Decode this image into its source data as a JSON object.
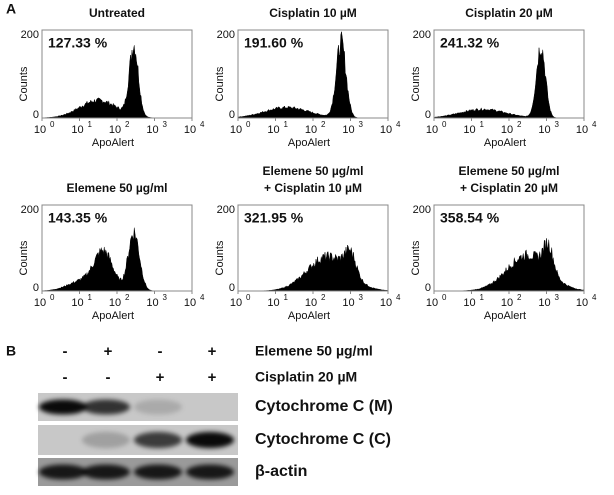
{
  "panel_a": {
    "label": "A",
    "x_label": "ApoAlert",
    "y_label": "Counts",
    "y_ticks": [
      "0",
      "200"
    ],
    "x_tick_base": "10",
    "x_tick_exponents": [
      "0",
      "1",
      "2",
      "3",
      "4"
    ],
    "plots": [
      {
        "title": [
          "Untreated"
        ],
        "percent": "127.33 %"
      },
      {
        "title": [
          "Cisplatin 10 µM"
        ],
        "percent": "191.60 %"
      },
      {
        "title": [
          "Cisplatin 20 µM"
        ],
        "percent": "241.32 %"
      },
      {
        "title": [
          "Elemene 50 µg/ml"
        ],
        "percent": "143.35 %"
      },
      {
        "title": [
          "Elemene 50 µg/ml",
          "+ Cisplatin 10 µM"
        ],
        "percent": "321.95 %"
      },
      {
        "title": [
          "Elemene 50 µg/ml",
          "+ Cisplatin 20 µM"
        ],
        "percent": "358.54 %"
      }
    ]
  },
  "panel_b": {
    "label": "B",
    "treatments": [
      {
        "name": "Elemene 50 µg/ml",
        "signs": [
          "-",
          "+",
          "-",
          "+"
        ]
      },
      {
        "name": "Cisplatin 20 µM",
        "signs": [
          "-",
          "-",
          "+",
          "+"
        ]
      }
    ],
    "bands": [
      "Cytochrome C (M)",
      "Cytochrome C (C)",
      "β-actin"
    ]
  }
}
